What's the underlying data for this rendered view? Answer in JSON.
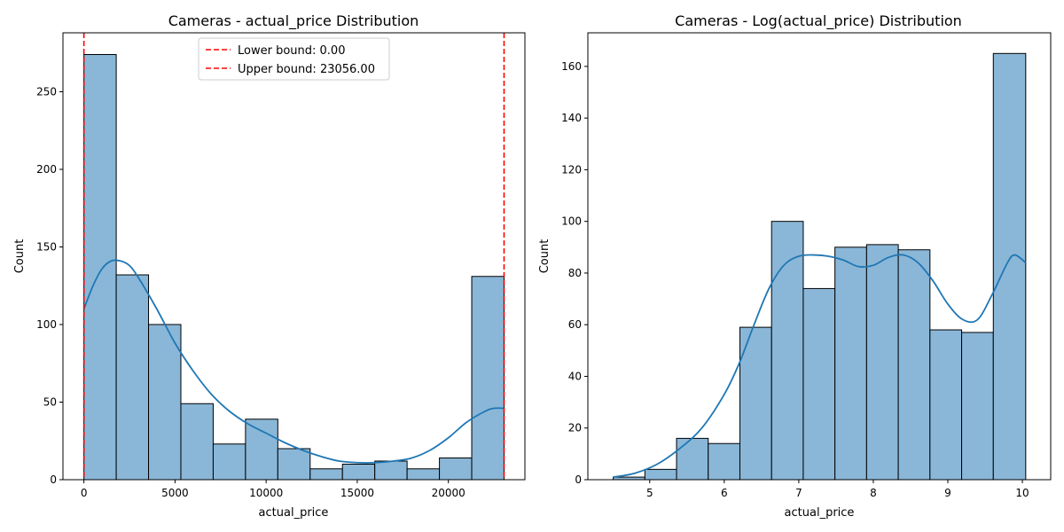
{
  "chart_data": [
    {
      "type": "bar",
      "title": "Cameras - actual_price Distribution",
      "xlabel": "actual_price",
      "ylabel": "Count",
      "xlim": [
        -1150,
        24200
      ],
      "ylim": [
        0,
        288
      ],
      "xticks": [
        0,
        5000,
        10000,
        15000,
        20000
      ],
      "xtick_labels": [
        "0",
        "5000",
        "10000",
        "15000",
        "20000"
      ],
      "yticks": [
        0,
        50,
        100,
        150,
        200,
        250
      ],
      "ytick_labels": [
        "0",
        "50",
        "100",
        "150",
        "200",
        "250"
      ],
      "bin_edges": [
        0,
        1773.5,
        3547,
        5320.6,
        7094.2,
        8867.7,
        10641.2,
        12414.8,
        14188.3,
        15961.8,
        17735.4,
        19509,
        21282.5,
        23056
      ],
      "counts": [
        274,
        132,
        100,
        49,
        23,
        39,
        20,
        7,
        10,
        12,
        7,
        14,
        131
      ],
      "kde": {
        "x": [
          0,
          500,
          1000,
          1500,
          2000,
          2500,
          3000,
          4000,
          5000,
          6000,
          7000,
          8000,
          9000,
          10000,
          11000,
          12000,
          13000,
          14000,
          15000,
          16000,
          17000,
          18000,
          19000,
          20000,
          21000,
          22000,
          22500,
          23056
        ],
        "y": [
          110,
          125,
          136,
          141,
          141,
          138,
          130,
          110,
          88,
          70,
          55,
          44,
          36,
          30,
          24,
          19,
          15,
          12,
          11,
          11,
          12,
          14,
          19,
          27,
          37,
          44,
          46,
          46
        ]
      },
      "vlines": [
        {
          "x": 0,
          "label": "Lower bound: 0.00",
          "color": "#ff0000"
        },
        {
          "x": 23056,
          "label": "Upper bound: 23056.00",
          "color": "#ff0000"
        }
      ],
      "legend": "top-center",
      "bar_color": "#8ab7d8",
      "line_color": "#1f77b4"
    },
    {
      "type": "bar",
      "title": "Cameras - Log(actual_price) Distribution",
      "xlabel": "actual_price",
      "ylabel": "Count",
      "xlim": [
        4.17,
        10.38
      ],
      "ylim": [
        0,
        173
      ],
      "xticks": [
        5,
        6,
        7,
        8,
        9,
        10
      ],
      "xtick_labels": [
        "5",
        "6",
        "7",
        "8",
        "9",
        "10"
      ],
      "yticks": [
        0,
        20,
        40,
        60,
        80,
        100,
        120,
        140,
        160
      ],
      "ytick_labels": [
        "0",
        "20",
        "40",
        "60",
        "80",
        "100",
        "120",
        "140",
        "160"
      ],
      "bin_edges": [
        4.51,
        4.935,
        5.36,
        5.785,
        6.21,
        6.635,
        7.06,
        7.485,
        7.91,
        8.335,
        8.76,
        9.185,
        9.61,
        10.045
      ],
      "counts": [
        1,
        4,
        16,
        14,
        59,
        100,
        74,
        90,
        91,
        89,
        58,
        57,
        165
      ],
      "kde": {
        "x": [
          4.51,
          4.8,
          5.1,
          5.4,
          5.7,
          6.0,
          6.2,
          6.4,
          6.6,
          6.8,
          7.0,
          7.2,
          7.4,
          7.6,
          7.8,
          8.0,
          8.2,
          8.4,
          8.6,
          8.8,
          9.0,
          9.2,
          9.4,
          9.6,
          9.8,
          9.9,
          10.045
        ],
        "y": [
          1,
          2.5,
          6,
          12,
          20,
          33,
          45,
          60,
          74,
          83,
          86.5,
          87,
          86.5,
          85,
          82.5,
          83,
          86,
          87,
          84,
          77,
          68,
          62,
          62,
          72,
          84,
          87,
          84
        ]
      },
      "bar_color": "#8ab7d8",
      "line_color": "#1f77b4"
    }
  ]
}
